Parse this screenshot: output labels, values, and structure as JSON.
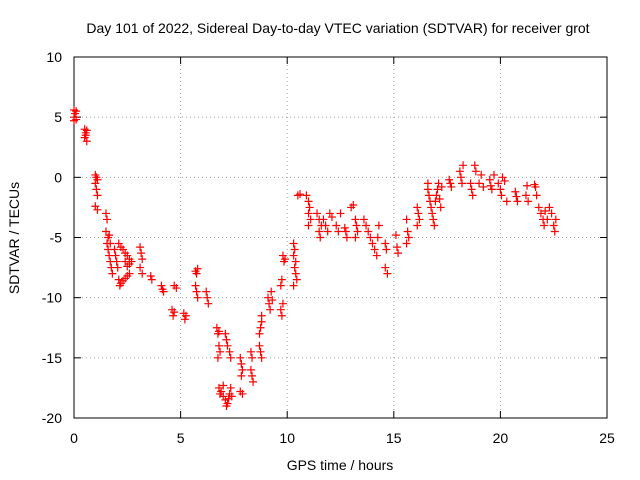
{
  "chart_data": {
    "type": "scatter",
    "title": "Day 101 of 2022, Sidereal Day-to-day VTEC variation (SDTVAR) for receiver grot",
    "xlabel": "GPS time / hours",
    "ylabel": "SDTVAR / TECUs",
    "xlim": [
      0,
      25
    ],
    "ylim": [
      -20,
      10
    ],
    "xticks": [
      0,
      5,
      10,
      15,
      20,
      25
    ],
    "yticks": [
      -20,
      -15,
      -10,
      -5,
      0,
      5,
      10
    ],
    "grid": true,
    "marker": "plus",
    "color": "#ff0000",
    "series": [
      {
        "name": "SDTVAR",
        "points": [
          [
            0.0,
            5.6
          ],
          [
            0.0,
            5.0
          ],
          [
            0.0,
            4.7
          ],
          [
            0.05,
            5.3
          ],
          [
            0.1,
            4.8
          ],
          [
            0.1,
            5.5
          ],
          [
            0.5,
            4.0
          ],
          [
            0.5,
            3.3
          ],
          [
            0.55,
            3.7
          ],
          [
            0.6,
            3.0
          ],
          [
            0.6,
            3.9
          ],
          [
            0.55,
            3.5
          ],
          [
            1.0,
            0.2
          ],
          [
            1.0,
            -0.5
          ],
          [
            1.05,
            -1.0
          ],
          [
            1.1,
            -0.2
          ],
          [
            1.1,
            -1.5
          ],
          [
            1.05,
            0.0
          ],
          [
            1.0,
            -2.4
          ],
          [
            1.1,
            -2.7
          ],
          [
            1.5,
            -3.0
          ],
          [
            1.55,
            -3.5
          ],
          [
            1.5,
            -4.5
          ],
          [
            1.6,
            -5.0
          ],
          [
            1.55,
            -5.5
          ],
          [
            1.6,
            -6.0
          ],
          [
            1.65,
            -6.5
          ],
          [
            1.7,
            -7.0
          ],
          [
            1.75,
            -7.5
          ],
          [
            1.8,
            -8.0
          ],
          [
            1.7,
            -5.5
          ],
          [
            1.65,
            -4.8
          ],
          [
            1.9,
            -6.0
          ],
          [
            1.95,
            -6.5
          ],
          [
            2.0,
            -7.0
          ],
          [
            2.05,
            -7.5
          ],
          [
            2.1,
            -8.5
          ],
          [
            2.15,
            -9.0
          ],
          [
            2.2,
            -8.8
          ],
          [
            2.3,
            -8.6
          ],
          [
            2.4,
            -8.4
          ],
          [
            2.5,
            -8.2
          ],
          [
            2.6,
            -8.0
          ],
          [
            2.1,
            -5.5
          ],
          [
            2.2,
            -5.8
          ],
          [
            2.3,
            -6.0
          ],
          [
            2.4,
            -6.3
          ],
          [
            2.5,
            -6.5
          ],
          [
            2.6,
            -6.8
          ],
          [
            2.7,
            -7.0
          ],
          [
            2.5,
            -7.4
          ],
          [
            2.4,
            -7.0
          ],
          [
            2.6,
            -7.2
          ],
          [
            3.1,
            -5.8
          ],
          [
            3.15,
            -6.3
          ],
          [
            3.2,
            -6.8
          ],
          [
            3.1,
            -7.5
          ],
          [
            3.2,
            -8.0
          ],
          [
            3.6,
            -8.2
          ],
          [
            3.65,
            -8.5
          ],
          [
            4.1,
            -9.0
          ],
          [
            4.15,
            -9.3
          ],
          [
            4.2,
            -9.5
          ],
          [
            4.7,
            -9.0
          ],
          [
            4.8,
            -9.2
          ],
          [
            4.6,
            -11.0
          ],
          [
            4.65,
            -11.5
          ],
          [
            4.7,
            -11.2
          ],
          [
            5.15,
            -11.3
          ],
          [
            5.2,
            -11.8
          ],
          [
            5.25,
            -11.5
          ],
          [
            5.7,
            -7.8
          ],
          [
            5.75,
            -8.0
          ],
          [
            5.8,
            -7.6
          ],
          [
            5.7,
            -9.0
          ],
          [
            5.75,
            -9.5
          ],
          [
            5.8,
            -10.0
          ],
          [
            6.2,
            -9.5
          ],
          [
            6.25,
            -10.0
          ],
          [
            6.3,
            -10.5
          ],
          [
            6.7,
            -12.5
          ],
          [
            6.75,
            -13.0
          ],
          [
            6.8,
            -12.8
          ],
          [
            6.8,
            -14.0
          ],
          [
            6.85,
            -14.5
          ],
          [
            6.75,
            -15.0
          ],
          [
            6.8,
            -17.5
          ],
          [
            6.85,
            -18.0
          ],
          [
            6.9,
            -17.8
          ],
          [
            7.0,
            -18.2
          ],
          [
            7.1,
            -13.0
          ],
          [
            7.15,
            -13.5
          ],
          [
            7.2,
            -14.0
          ],
          [
            7.3,
            -14.5
          ],
          [
            7.35,
            -15.0
          ],
          [
            7.1,
            -18.5
          ],
          [
            7.15,
            -19.0
          ],
          [
            7.2,
            -18.8
          ],
          [
            7.25,
            -18.4
          ],
          [
            7.3,
            -18.0
          ],
          [
            7.35,
            -17.5
          ],
          [
            7.4,
            -18.2
          ],
          [
            7.0,
            -17.3
          ],
          [
            7.8,
            -15.0
          ],
          [
            7.85,
            -15.5
          ],
          [
            7.9,
            -16.0
          ],
          [
            7.85,
            -16.5
          ],
          [
            7.8,
            -17.8
          ],
          [
            7.9,
            -18.0
          ],
          [
            8.3,
            -14.5
          ],
          [
            8.35,
            -15.0
          ],
          [
            8.3,
            -16.0
          ],
          [
            8.35,
            -16.5
          ],
          [
            8.4,
            -17.0
          ],
          [
            8.7,
            -13.0
          ],
          [
            8.75,
            -12.5
          ],
          [
            8.8,
            -12.0
          ],
          [
            8.8,
            -11.5
          ],
          [
            8.7,
            -14.0
          ],
          [
            8.75,
            -14.5
          ],
          [
            8.8,
            -15.0
          ],
          [
            9.1,
            -10.0
          ],
          [
            9.15,
            -10.5
          ],
          [
            9.2,
            -11.0
          ],
          [
            9.25,
            -9.5
          ],
          [
            9.3,
            -10.2
          ],
          [
            9.7,
            -11.0
          ],
          [
            9.75,
            -11.5
          ],
          [
            9.8,
            -10.5
          ],
          [
            9.7,
            -9.0
          ],
          [
            9.75,
            -8.5
          ],
          [
            9.8,
            -6.5
          ],
          [
            9.85,
            -7.0
          ],
          [
            9.9,
            -6.8
          ],
          [
            10.3,
            -5.5
          ],
          [
            10.35,
            -6.0
          ],
          [
            10.3,
            -6.5
          ],
          [
            10.4,
            -7.0
          ],
          [
            10.35,
            -7.5
          ],
          [
            10.4,
            -8.0
          ],
          [
            10.45,
            -8.5
          ],
          [
            10.3,
            -9.0
          ],
          [
            10.5,
            -1.5
          ],
          [
            10.6,
            -1.4
          ],
          [
            10.9,
            -1.5
          ],
          [
            11.0,
            -2.0
          ],
          [
            11.05,
            -2.5
          ],
          [
            11.0,
            -3.0
          ],
          [
            11.1,
            -3.5
          ],
          [
            11.0,
            -4.0
          ],
          [
            11.4,
            -3.0
          ],
          [
            11.5,
            -3.5
          ],
          [
            11.6,
            -4.0
          ],
          [
            11.5,
            -4.5
          ],
          [
            11.55,
            -5.0
          ],
          [
            11.7,
            -3.5
          ],
          [
            11.8,
            -4.0
          ],
          [
            11.9,
            -4.5
          ],
          [
            12.0,
            -3.0
          ],
          [
            12.1,
            -3.3
          ],
          [
            12.3,
            -4.0
          ],
          [
            12.4,
            -4.5
          ],
          [
            12.5,
            -3.0
          ],
          [
            12.7,
            -4.2
          ],
          [
            12.75,
            -4.5
          ],
          [
            12.8,
            -5.0
          ],
          [
            13.0,
            -2.5
          ],
          [
            13.1,
            -2.3
          ],
          [
            13.2,
            -3.5
          ],
          [
            13.25,
            -4.0
          ],
          [
            13.3,
            -4.5
          ],
          [
            13.2,
            -5.0
          ],
          [
            13.6,
            -3.5
          ],
          [
            13.7,
            -4.0
          ],
          [
            13.8,
            -4.5
          ],
          [
            13.9,
            -5.0
          ],
          [
            14.0,
            -5.5
          ],
          [
            14.1,
            -6.0
          ],
          [
            14.2,
            -6.5
          ],
          [
            14.3,
            -4.0
          ],
          [
            14.25,
            -5.0
          ],
          [
            14.6,
            -5.5
          ],
          [
            14.65,
            -6.0
          ],
          [
            14.6,
            -7.5
          ],
          [
            14.7,
            -8.0
          ],
          [
            15.1,
            -4.8
          ],
          [
            15.15,
            -5.8
          ],
          [
            15.2,
            -6.3
          ],
          [
            15.6,
            -3.5
          ],
          [
            15.65,
            -4.5
          ],
          [
            15.7,
            -5.0
          ],
          [
            15.6,
            -5.5
          ],
          [
            16.1,
            -2.5
          ],
          [
            16.15,
            -3.0
          ],
          [
            16.2,
            -3.5
          ],
          [
            16.1,
            -4.0
          ],
          [
            16.6,
            -1.0
          ],
          [
            16.65,
            -1.5
          ],
          [
            16.7,
            -2.0
          ],
          [
            16.75,
            -2.5
          ],
          [
            16.8,
            -3.0
          ],
          [
            16.85,
            -3.5
          ],
          [
            16.9,
            -4.0
          ],
          [
            16.95,
            -2.0
          ],
          [
            17.0,
            -1.5
          ],
          [
            17.05,
            -1.0
          ],
          [
            17.1,
            -0.5
          ],
          [
            17.15,
            -1.8
          ],
          [
            17.2,
            -2.5
          ],
          [
            17.25,
            -0.8
          ],
          [
            16.6,
            -0.5
          ],
          [
            17.6,
            -0.2
          ],
          [
            17.65,
            -0.5
          ],
          [
            17.7,
            -0.8
          ],
          [
            18.1,
            0.5
          ],
          [
            18.15,
            0.0
          ],
          [
            18.2,
            -0.5
          ],
          [
            18.25,
            1.0
          ],
          [
            18.6,
            -0.5
          ],
          [
            18.65,
            -1.0
          ],
          [
            18.7,
            -1.5
          ],
          [
            18.8,
            1.0
          ],
          [
            18.85,
            0.5
          ],
          [
            19.0,
            -0.5
          ],
          [
            19.1,
            0.2
          ],
          [
            19.2,
            -0.8
          ],
          [
            19.5,
            -0.2
          ],
          [
            19.55,
            -0.7
          ],
          [
            19.6,
            -1.0
          ],
          [
            19.7,
            0.2
          ],
          [
            19.9,
            -0.5
          ],
          [
            20.0,
            -1.0
          ],
          [
            20.05,
            -1.5
          ],
          [
            20.1,
            0.0
          ],
          [
            20.2,
            -0.3
          ],
          [
            20.3,
            -2.0
          ],
          [
            20.7,
            -1.2
          ],
          [
            20.75,
            -1.6
          ],
          [
            20.8,
            -2.0
          ],
          [
            21.2,
            -1.5
          ],
          [
            21.25,
            -0.7
          ],
          [
            21.3,
            -2.0
          ],
          [
            21.6,
            -0.6
          ],
          [
            21.65,
            -0.8
          ],
          [
            21.7,
            -1.5
          ],
          [
            21.8,
            -2.5
          ],
          [
            21.9,
            -3.0
          ],
          [
            22.0,
            -3.5
          ],
          [
            22.1,
            -2.8
          ],
          [
            22.2,
            -3.5
          ],
          [
            22.3,
            -2.5
          ],
          [
            22.4,
            -3.0
          ],
          [
            22.5,
            -4.0
          ],
          [
            22.55,
            -4.5
          ],
          [
            22.6,
            -3.5
          ],
          [
            22.05,
            -4.0
          ]
        ]
      }
    ]
  }
}
